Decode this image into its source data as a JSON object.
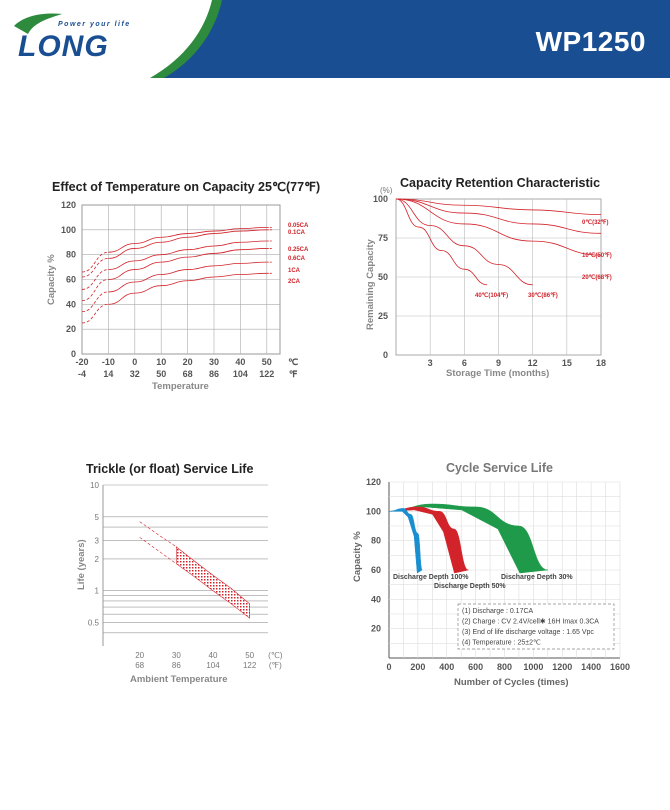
{
  "header": {
    "logo_text": "LONG",
    "tagline": "Power your life",
    "model": "WP1250",
    "brand_color": "#1a4e93",
    "logo_green": "#2e8b3d"
  },
  "charts": {
    "temp_capacity": {
      "title": "Effect of Temperature on Capacity  25℃(77℉)",
      "ylabel": "Capacity %",
      "xlabel": "Temperature",
      "y_ticks": [
        "120",
        "100",
        "80",
        "60",
        "40",
        "20",
        "0"
      ],
      "x_ticks_c": [
        "-20",
        "-10",
        "0",
        "10",
        "20",
        "30",
        "40",
        "50",
        "℃"
      ],
      "x_ticks_f": [
        "-4",
        "14",
        "32",
        "50",
        "68",
        "86",
        "104",
        "122",
        "℉"
      ]
    },
    "retention": {
      "title": "Capacity Retention Characteristic",
      "ylabel": "Remaining Capacity",
      "y_unit": "(%)",
      "xlabel": "Storage Time (months)",
      "y_ticks": [
        "100",
        "75",
        "50",
        "25",
        "0"
      ],
      "x_ticks": [
        "3",
        "6",
        "9",
        "12",
        "15",
        "18"
      ]
    },
    "float_life": {
      "title": "Trickle (or float) Service Life",
      "ylabel": "Life (years)",
      "xlabel": "Ambient Temperature",
      "y_ticks": [
        "10",
        "5",
        "3",
        "2",
        "1",
        "0.5"
      ],
      "x_ticks_c": [
        "20",
        "30",
        "40",
        "50",
        "(℃)"
      ],
      "x_ticks_f": [
        "68",
        "86",
        "104",
        "122",
        "(℉)"
      ]
    },
    "cycle_life": {
      "title": "Cycle Service Life",
      "ylabel": "Capacity %",
      "xlabel": "Number of Cycles (times)",
      "y_ticks": [
        "120",
        "100",
        "80",
        "60",
        "40",
        "20"
      ],
      "x_ticks": [
        "0",
        "200",
        "400",
        "600",
        "800",
        "1000",
        "1200",
        "1400",
        "1600"
      ],
      "notes": [
        "(1) Discharge : 0.17CA",
        "(2) Charge : CV 2.4V/cell✱ 16H Imax 0.3CA",
        "(3) End of life discharge voltage : 1.65 Vpc",
        "(4) Temperature : 25±2℃"
      ]
    }
  },
  "chart_data": [
    {
      "type": "line",
      "title": "Effect of Temperature on Capacity  25℃(77℉)",
      "xlabel": "Temperature",
      "ylabel": "Capacity %",
      "xlim": [
        -20,
        55
      ],
      "ylim": [
        0,
        120
      ],
      "x": [
        -20,
        -10,
        0,
        10,
        20,
        30,
        40,
        50
      ],
      "series": [
        {
          "name": "0.05CA",
          "values": [
            66,
            82,
            89,
            94,
            97,
            99,
            101,
            102
          ]
        },
        {
          "name": "0.1CA",
          "values": [
            62,
            77,
            85,
            90,
            94,
            97,
            99,
            100
          ]
        },
        {
          "name": "0.25CA",
          "values": [
            52,
            68,
            75,
            80,
            84,
            87,
            90,
            91
          ]
        },
        {
          "name": "0.6CA",
          "values": [
            43,
            60,
            68,
            74,
            78,
            81,
            84,
            85
          ]
        },
        {
          "name": "1CA",
          "values": [
            34,
            50,
            58,
            64,
            68,
            71,
            73,
            74
          ]
        },
        {
          "name": "2CA",
          "values": [
            25,
            40,
            49,
            55,
            59,
            62,
            64,
            65
          ]
        }
      ]
    },
    {
      "type": "line",
      "title": "Capacity Retention Characteristic",
      "xlabel": "Storage Time (months)",
      "ylabel": "Remaining Capacity",
      "xlim": [
        0,
        18
      ],
      "ylim": [
        0,
        100
      ],
      "series": [
        {
          "name": "0℃(32℉)",
          "x": [
            0,
            6,
            12,
            18
          ],
          "values": [
            100,
            96,
            93,
            90
          ]
        },
        {
          "name": "10℃(50℉)",
          "x": [
            0,
            6,
            12,
            18
          ],
          "values": [
            100,
            91,
            84,
            78
          ]
        },
        {
          "name": "20℃(68℉)",
          "x": [
            0,
            6,
            12,
            18
          ],
          "values": [
            100,
            84,
            73,
            64
          ]
        },
        {
          "name": "30℃(86℉)",
          "x": [
            0,
            3,
            6,
            9,
            12
          ],
          "values": [
            100,
            83,
            70,
            58,
            45
          ]
        },
        {
          "name": "40℃(104℉)",
          "x": [
            0,
            2,
            4,
            6,
            8
          ],
          "values": [
            100,
            82,
            67,
            55,
            45
          ]
        }
      ]
    },
    {
      "type": "area",
      "title": "Trickle (or float) Service Life",
      "xlabel": "Ambient Temperature",
      "ylabel": "Life (years)",
      "xlim": [
        10,
        55
      ],
      "ylim": [
        0.3,
        10
      ],
      "x": [
        20,
        25,
        30,
        35,
        40,
        45,
        50
      ],
      "series": [
        {
          "values": [
            4.5,
            3.4,
            2.6,
            1.9,
            1.4,
            1.05,
            0.75
          ]
        },
        {
          "values": [
            3.2,
            2.4,
            1.8,
            1.35,
            1.0,
            0.75,
            0.55
          ]
        }
      ]
    },
    {
      "type": "area",
      "title": "Cycle Service Life",
      "xlabel": "Number of Cycles (times)",
      "ylabel": "Capacity %",
      "xlim": [
        0,
        1600
      ],
      "ylim": [
        0,
        120
      ],
      "series": [
        {
          "name": "Discharge Depth 100%",
          "x": [
            0,
            100,
            150,
            200,
            230
          ],
          "values": [
            100,
            102,
            98,
            85,
            60
          ],
          "color": "#1a8fd0"
        },
        {
          "name": "Discharge Depth 50%",
          "x": [
            0,
            200,
            350,
            450,
            550
          ],
          "values": [
            100,
            103,
            100,
            88,
            60
          ],
          "color": "#d2232a"
        },
        {
          "name": "Discharge Depth 30%",
          "x": [
            0,
            300,
            600,
            900,
            1100
          ],
          "values": [
            100,
            105,
            103,
            90,
            60
          ],
          "color": "#1f9a4a"
        }
      ]
    }
  ]
}
